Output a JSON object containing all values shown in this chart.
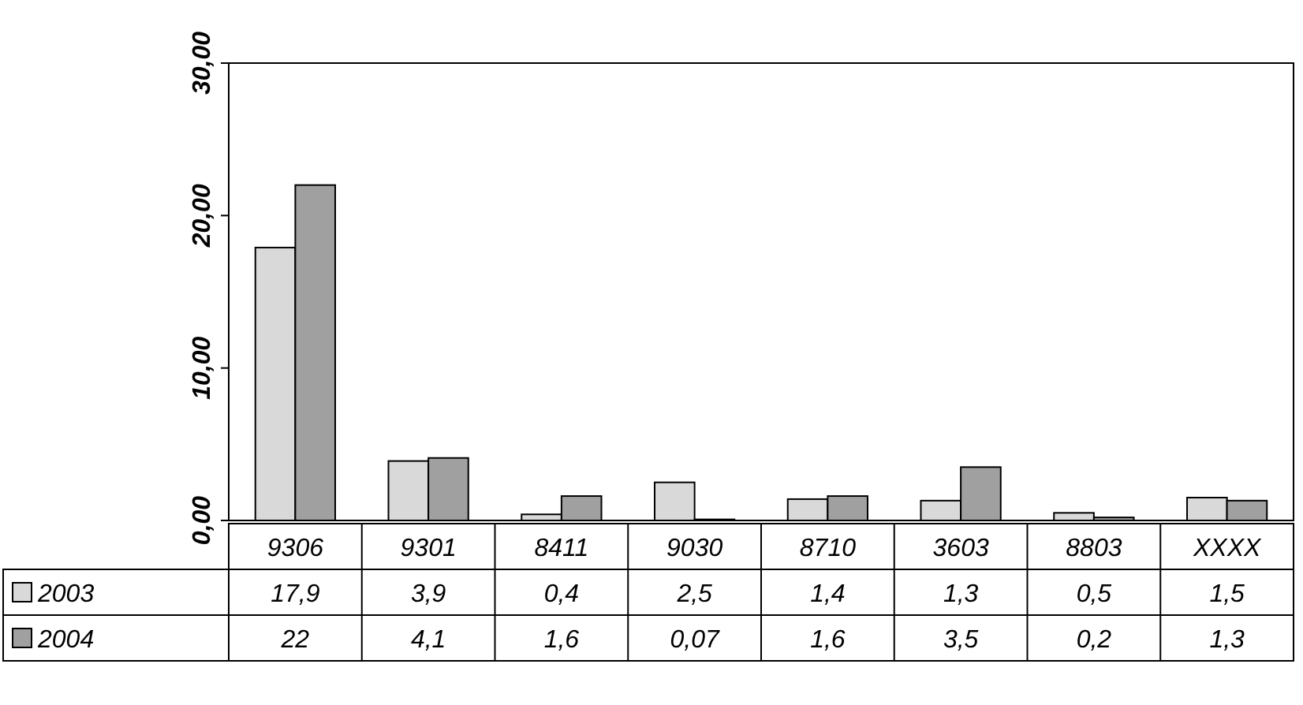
{
  "chart_data": {
    "type": "bar",
    "categories": [
      "9306",
      "9301",
      "8411",
      "9030",
      "8710",
      "3603",
      "8803",
      "XXXX"
    ],
    "series": [
      {
        "name": "2003",
        "color": "#d9d9d9",
        "values": [
          17.9,
          3.9,
          0.4,
          2.5,
          1.4,
          1.3,
          0.5,
          1.5
        ],
        "value_labels": [
          "17,9",
          "3,9",
          "0,4",
          "2,5",
          "1,4",
          "1,3",
          "0,5",
          "1,5"
        ]
      },
      {
        "name": "2004",
        "color": "#a0a0a0",
        "values": [
          22,
          4.1,
          1.6,
          0.07,
          1.6,
          3.5,
          0.2,
          1.3
        ],
        "value_labels": [
          "22",
          "4,1",
          "1,6",
          "0,07",
          "1,6",
          "3,5",
          "0,2",
          "1,3"
        ]
      }
    ],
    "ylim": [
      0,
      30
    ],
    "yticks": [
      {
        "value": 0,
        "label": "0,00"
      },
      {
        "value": 10,
        "label": "10,00"
      },
      {
        "value": 20,
        "label": "20,00"
      },
      {
        "value": 30,
        "label": "30,00"
      }
    ],
    "legend": "bottom"
  }
}
